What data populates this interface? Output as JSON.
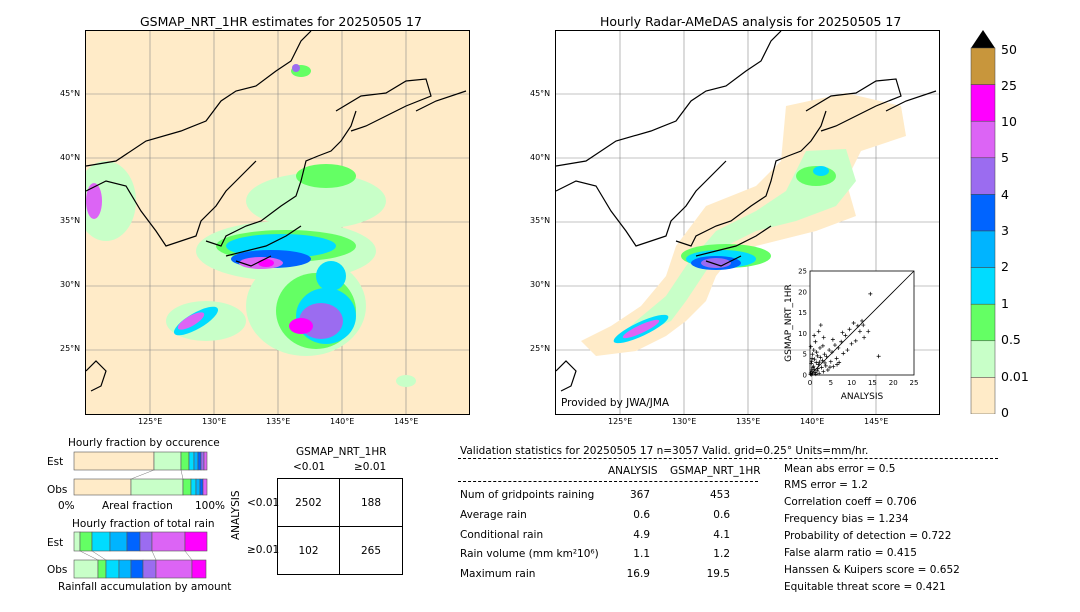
{
  "left_map": {
    "title": "GSMAP_NRT_1HR estimates for 20250505 17",
    "lat_labels": [
      "45°N",
      "40°N",
      "35°N",
      "30°N",
      "25°N"
    ],
    "lon_labels": [
      "125°E",
      "130°E",
      "135°E",
      "140°E",
      "145°E"
    ]
  },
  "right_map": {
    "title": "Hourly Radar-AMeDAS analysis for 20250505 17",
    "lat_labels": [
      "45°N",
      "40°N",
      "35°N",
      "30°N",
      "25°N"
    ],
    "lon_labels": [
      "125°E",
      "130°E",
      "135°E",
      "140°E",
      "145°E"
    ],
    "credit": "Provided by JWA/JMA"
  },
  "colorbar": {
    "labels": [
      "50",
      "25",
      "10",
      "5",
      "4",
      "3",
      "2",
      "1",
      "0.5",
      "0.01",
      "0"
    ],
    "colors": [
      "#c8963c",
      "#ff00ff",
      "#dc64f5",
      "#9b6cf0",
      "#0064ff",
      "#00b4ff",
      "#00dcff",
      "#64ff64",
      "#c8ffc8",
      "#ffebc8"
    ],
    "over_color": "#000000"
  },
  "occurrence": {
    "title": "Hourly fraction by occurence",
    "row_labels": [
      "Est",
      "Obs"
    ],
    "axis_labels": [
      "0%",
      "Areal fraction",
      "100%"
    ]
  },
  "total_rain": {
    "title": "Hourly fraction of total rain",
    "row_labels": [
      "Est",
      "Obs"
    ],
    "footer": "Rainfall accumulation by amount"
  },
  "contingency": {
    "title": "GSMAP_NRT_1HR",
    "col_labels": [
      "<0.01",
      "≥0.01"
    ],
    "row_axis": "ANALYSIS",
    "row_labels": [
      "<0.01",
      "≥0.01"
    ],
    "cells": [
      [
        "2502",
        "188"
      ],
      [
        "102",
        "265"
      ]
    ]
  },
  "validation": {
    "header": "Validation statistics for 20250505 17  n=3057 Valid. grid=0.25° Units=mm/hr.",
    "col_analysis": "ANALYSIS",
    "col_gsmap": "GSMAP_NRT_1HR",
    "rows": [
      {
        "label": "Num of gridpoints raining",
        "analysis": "367",
        "gsmap": "453"
      },
      {
        "label": "Average rain",
        "analysis": "0.6",
        "gsmap": "0.6"
      },
      {
        "label": "Conditional rain",
        "analysis": "4.9",
        "gsmap": "4.1"
      },
      {
        "label": "Rain volume (mm km²10⁶)",
        "analysis": "1.1",
        "gsmap": "1.2"
      },
      {
        "label": "Maximum rain",
        "analysis": "16.9",
        "gsmap": "19.5"
      }
    ],
    "scores": [
      "Mean abs error =    0.5",
      "RMS error =    1.2",
      "Correlation coeff =  0.706",
      "Frequency bias =  1.234",
      "Probability of detection =  0.722",
      "False alarm ratio =  0.415",
      "Hanssen & Kuipers score =  0.652",
      "Equitable threat score =  0.421"
    ]
  },
  "chart_data": {
    "type": "scatter",
    "title": "",
    "xlabel": "ANALYSIS",
    "ylabel": "GSMAP_NRT_1HR",
    "xlim": [
      0,
      25
    ],
    "ylim": [
      0,
      25
    ],
    "ticks": [
      "0",
      "5",
      "10",
      "15",
      "20",
      "25"
    ],
    "points": [
      [
        0.2,
        0.5
      ],
      [
        0.4,
        1.2
      ],
      [
        0.6,
        0.3
      ],
      [
        0.8,
        2.1
      ],
      [
        1.0,
        1.4
      ],
      [
        1.2,
        0.6
      ],
      [
        1.5,
        3.0
      ],
      [
        1.7,
        1.0
      ],
      [
        2.0,
        2.5
      ],
      [
        2.2,
        0.4
      ],
      [
        2.5,
        4.2
      ],
      [
        2.8,
        1.8
      ],
      [
        3.0,
        3.5
      ],
      [
        3.2,
        0.8
      ],
      [
        3.5,
        5.0
      ],
      [
        3.8,
        2.2
      ],
      [
        4.0,
        4.4
      ],
      [
        4.3,
        1.2
      ],
      [
        4.6,
        6.0
      ],
      [
        5.0,
        3.2
      ],
      [
        5.3,
        5.5
      ],
      [
        5.6,
        2.0
      ],
      [
        6.0,
        7.2
      ],
      [
        6.4,
        4.0
      ],
      [
        6.8,
        6.5
      ],
      [
        7.0,
        3.0
      ],
      [
        7.5,
        8.0
      ],
      [
        8.0,
        5.2
      ],
      [
        8.5,
        9.5
      ],
      [
        9.0,
        6.0
      ],
      [
        9.5,
        11.0
      ],
      [
        10.0,
        7.5
      ],
      [
        10.5,
        12.5
      ],
      [
        11.0,
        8.2
      ],
      [
        12.0,
        10.5
      ],
      [
        12.5,
        13.0
      ],
      [
        13.0,
        9.0
      ],
      [
        14.0,
        10.5
      ],
      [
        14.5,
        19.5
      ],
      [
        16.5,
        4.5
      ],
      [
        0.3,
        2.8
      ],
      [
        0.5,
        4.0
      ],
      [
        0.7,
        1.8
      ],
      [
        0.9,
        6.0
      ],
      [
        1.1,
        3.8
      ],
      [
        1.3,
        8.0
      ],
      [
        1.6,
        5.5
      ],
      [
        2.1,
        10.5
      ],
      [
        2.6,
        12.0
      ],
      [
        3.1,
        7.0
      ],
      [
        0.1,
        0.2
      ],
      [
        0.3,
        0.1
      ],
      [
        0.5,
        0.8
      ],
      [
        1.4,
        0.2
      ],
      [
        1.9,
        1.6
      ],
      [
        2.3,
        3.1
      ],
      [
        0.6,
        5.0
      ],
      [
        1.8,
        4.6
      ],
      [
        3.6,
        2.9
      ],
      [
        4.8,
        1.9
      ],
      [
        2.4,
        6.5
      ],
      [
        3.3,
        9.0
      ],
      [
        5.5,
        8.5
      ],
      [
        7.8,
        10.2
      ],
      [
        11.5,
        11.8
      ],
      [
        12.8,
        12.0
      ],
      [
        0.4,
        3.3
      ],
      [
        0.2,
        6.8
      ],
      [
        1.0,
        9.5
      ],
      [
        6.5,
        2.5
      ]
    ]
  }
}
